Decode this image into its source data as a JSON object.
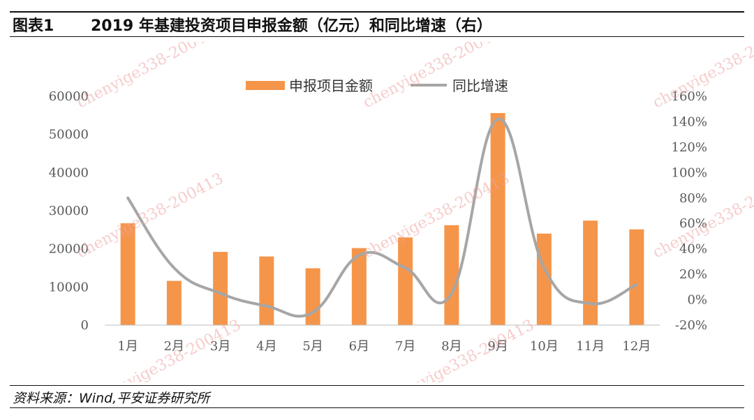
{
  "header": {
    "label": "图表1",
    "title": "2019 年基建投资项目申报金额（亿元）和同比增速（右）"
  },
  "source": "资料来源：Wind,平安证券研究所",
  "watermark": "chenyige338-200413",
  "colors": {
    "bar": "#F5954A",
    "line": "#A6A6A6",
    "axis": "#595959",
    "text": "#595959"
  },
  "chart_data": {
    "type": "bar+line",
    "title": "",
    "categories": [
      "1月",
      "2月",
      "3月",
      "4月",
      "5月",
      "6月",
      "7月",
      "8月",
      "9月",
      "10月",
      "11月",
      "12月"
    ],
    "series": [
      {
        "name": "申报项目金额",
        "type": "bar",
        "axis": "left",
        "values": [
          26700,
          11600,
          19200,
          18000,
          14900,
          20200,
          23000,
          26200,
          55600,
          24000,
          27400,
          25100
        ]
      },
      {
        "name": "同比增速",
        "type": "line",
        "axis": "right",
        "values": [
          0.8,
          0.25,
          0.05,
          -0.05,
          -0.1,
          0.35,
          0.25,
          0.05,
          1.42,
          0.25,
          -0.03,
          0.12
        ]
      }
    ],
    "y_left": {
      "min": 0,
      "max": 60000,
      "ticks": [
        "0",
        "10000",
        "20000",
        "30000",
        "40000",
        "50000",
        "60000"
      ]
    },
    "y_right": {
      "min": -0.2,
      "max": 1.6,
      "ticks": [
        "-20%",
        "0%",
        "20%",
        "40%",
        "60%",
        "80%",
        "100%",
        "120%",
        "140%",
        "160%"
      ]
    },
    "legend": {
      "position": "top-center",
      "items": [
        "申报项目金额",
        "同比增速"
      ]
    }
  }
}
